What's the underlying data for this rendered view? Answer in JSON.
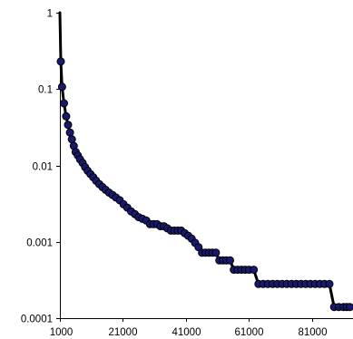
{
  "chart_data": {
    "type": "line",
    "title": "",
    "xlabel": "",
    "ylabel": "",
    "x_scale": "linear",
    "y_scale": "log",
    "xlim": [
      1000,
      93000
    ],
    "ylim": [
      0.0001,
      1
    ],
    "grid": false,
    "legend": "none",
    "x_tick_labels": [
      "1000",
      "21000",
      "41000",
      "61000",
      "81000"
    ],
    "x_tick_values": [
      1000,
      21000,
      41000,
      61000,
      81000
    ],
    "y_tick_labels": [
      "1",
      "0.1",
      "0.01",
      "0.001",
      "0.0001"
    ],
    "y_tick_values": [
      1,
      0.1,
      0.01,
      0.001,
      0.0001
    ],
    "marker_color": "#191970",
    "line_color": "#000000",
    "series": [
      {
        "x": [
          1000,
          1300,
          1700,
          2300,
          3000,
          3600,
          4200,
          4800,
          5400,
          6000,
          6700,
          7400,
          8200,
          9000,
          9800,
          10700,
          11600,
          12500,
          13500,
          14500,
          15500,
          16600,
          17700,
          18800,
          20000,
          21200,
          22400,
          23600,
          24800,
          26000,
          27200,
          28400,
          29600,
          30700,
          31800,
          32900,
          34000,
          35100,
          36200,
          37300,
          38400,
          39500,
          40600,
          41700,
          42800,
          43900,
          45000,
          46100,
          47200,
          48300,
          49400,
          50500,
          51600,
          52700,
          53800,
          55000,
          56200,
          57400,
          58600,
          59800,
          61000,
          62500,
          64000,
          65500,
          67000,
          68500,
          70000,
          71500,
          73000,
          74500,
          76000,
          77500,
          79000,
          80500,
          82000,
          83500,
          85000,
          86500,
          88000,
          89500,
          91000,
          92000,
          93000
        ],
        "y": [
          1,
          0.23,
          0.107,
          0.065,
          0.044,
          0.034,
          0.027,
          0.022,
          0.018,
          0.015,
          0.0135,
          0.012,
          0.0108,
          0.0095,
          0.0085,
          0.0077,
          0.007,
          0.0063,
          0.0057,
          0.0052,
          0.0048,
          0.0044,
          0.0041,
          0.0038,
          0.0035,
          0.0031,
          0.0028,
          0.0025,
          0.0023,
          0.0021,
          0.002,
          0.0019,
          0.0017,
          0.0017,
          0.0017,
          0.0016,
          0.0016,
          0.0015,
          0.0014,
          0.0014,
          0.0014,
          0.0014,
          0.0013,
          0.0012,
          0.0011,
          0.00097,
          0.00085,
          0.00072,
          0.00072,
          0.00072,
          0.00072,
          0.00072,
          0.00057,
          0.00057,
          0.00057,
          0.00057,
          0.00043,
          0.00043,
          0.00043,
          0.00043,
          0.00043,
          0.00043,
          0.00028,
          0.00028,
          0.00028,
          0.00028,
          0.00028,
          0.00028,
          0.00028,
          0.00028,
          0.00028,
          0.00028,
          0.00028,
          0.00028,
          0.00028,
          0.00028,
          0.00028,
          0.00028,
          0.00014,
          0.00014,
          0.00014,
          0.00014,
          0.00014
        ]
      }
    ]
  }
}
